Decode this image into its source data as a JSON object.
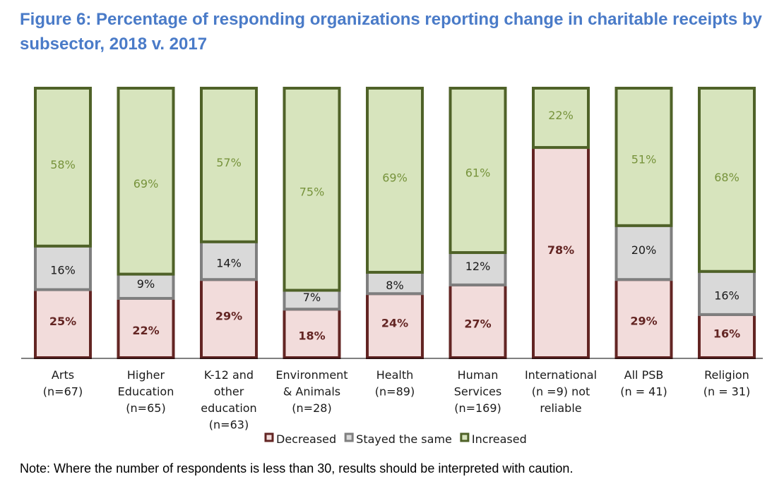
{
  "chart_data": {
    "type": "bar",
    "stacked": true,
    "percent_stacked": true,
    "title": "Figure 6: Percentage of responding organizations reporting change in charitable receipts by subsector, 2018 v. 2017",
    "categories": [
      [
        "Arts",
        "(n=67)"
      ],
      [
        "Higher",
        "Education",
        "(n=65)"
      ],
      [
        "K-12 and",
        "other",
        "education",
        "(n=63)"
      ],
      [
        "Environment",
        "& Animals",
        "(n=28)"
      ],
      [
        "Health",
        "(n=89)"
      ],
      [
        "Human",
        "Services",
        "(n=169)"
      ],
      [
        "International",
        "(n =9) not",
        "reliable"
      ],
      [
        "All PSB",
        "(n = 41)"
      ],
      [
        "Religion",
        "(n = 31)"
      ]
    ],
    "series": [
      {
        "name": "Decreased",
        "values": [
          25,
          22,
          29,
          18,
          24,
          27,
          78,
          29,
          16
        ],
        "fill": "#f2dcdb",
        "stroke": "#632523",
        "text": "#632523"
      },
      {
        "name": "Stayed the same",
        "values": [
          16,
          9,
          14,
          7,
          8,
          12,
          0,
          20,
          16
        ],
        "fill": "#d9d9d9",
        "stroke": "#7f7f7f",
        "text": "#1a1a1a"
      },
      {
        "name": "Increased",
        "values": [
          58,
          69,
          57,
          75,
          69,
          61,
          22,
          51,
          68
        ],
        "fill": "#d7e4bd",
        "stroke": "#4f6228",
        "text": "#77933c"
      }
    ],
    "legend_position": "bottom",
    "grid": false
  },
  "note": "Note: Where the number of respondents is less than 30, results should be interpreted with caution."
}
